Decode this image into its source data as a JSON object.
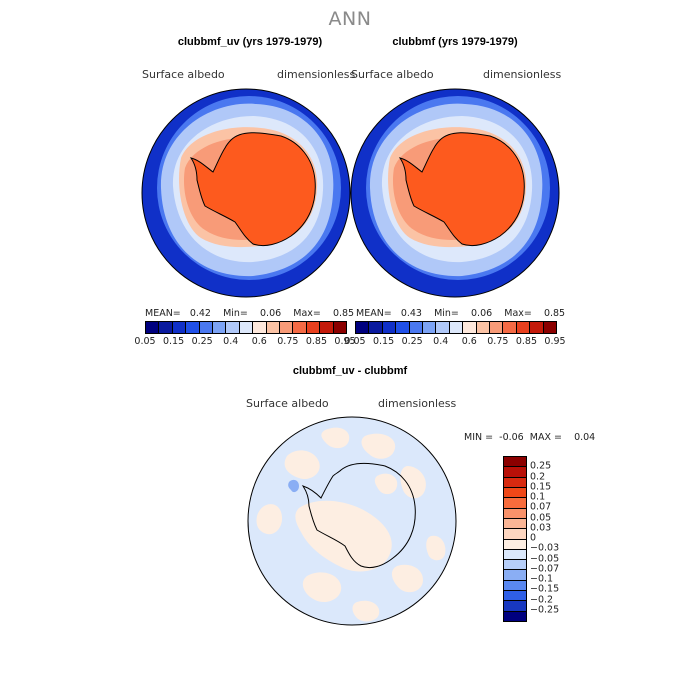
{
  "season": "ANN",
  "chart_data": [
    {
      "type": "heatmap",
      "projection": "south-polar-stereographic",
      "title": "clubbmf_uv (yrs 1979-1979)",
      "left_label": "Surface albedo",
      "right_label": "dimensionless",
      "stats": {
        "mean_label": "MEAN=",
        "mean": "0.42",
        "min_label": "Min=",
        "min": "0.06",
        "max_label": "Max=",
        "max": "0.85"
      },
      "levels": [
        "0.05",
        "0.15",
        "0.25",
        "0.4",
        "0.6",
        "0.75",
        "0.85",
        "0.95"
      ],
      "colors": [
        "#00007f",
        "#0a1a9e",
        "#1030c8",
        "#2050e8",
        "#4a78f0",
        "#7ca3f5",
        "#b0c8f8",
        "#dde8fb",
        "#fde8dc",
        "#fbc3a5",
        "#f89b78",
        "#f46a45",
        "#e8401e",
        "#c41a0a",
        "#8b0000"
      ]
    },
    {
      "type": "heatmap",
      "projection": "south-polar-stereographic",
      "title": "clubbmf (yrs 1979-1979)",
      "left_label": "Surface albedo",
      "right_label": "dimensionless",
      "stats": {
        "mean_label": "MEAN=",
        "mean": "0.43",
        "min_label": "Min=",
        "min": "0.06",
        "max_label": "Max=",
        "max": "0.85"
      },
      "levels": [
        "0.05",
        "0.15",
        "0.25",
        "0.4",
        "0.6",
        "0.75",
        "0.85",
        "0.95"
      ],
      "colors": [
        "#00007f",
        "#0a1a9e",
        "#1030c8",
        "#2050e8",
        "#4a78f0",
        "#7ca3f5",
        "#b0c8f8",
        "#dde8fb",
        "#fde8dc",
        "#fbc3a5",
        "#f89b78",
        "#f46a45",
        "#e8401e",
        "#c41a0a",
        "#8b0000"
      ]
    },
    {
      "type": "heatmap",
      "projection": "south-polar-stereographic",
      "title": "clubbmf_uv - clubbmf",
      "left_label": "Surface albedo",
      "right_label": "dimensionless",
      "stats": {
        "min_label": "MIN =",
        "min": "-0.06",
        "max_label": "MAX =",
        "max": "0.04"
      },
      "levels": [
        "0.25",
        "0.2",
        "0.15",
        "0.1",
        "0.07",
        "0.05",
        "0.03",
        "0",
        "-0.03",
        "-0.05",
        "-0.07",
        "-0.1",
        "-0.15",
        "-0.2",
        "-0.25"
      ],
      "colors": [
        "#8b0000",
        "#b81008",
        "#d82a10",
        "#f04818",
        "#f86c3c",
        "#f9926a",
        "#fbb696",
        "#fdd6c0",
        "#fdeee2",
        "#dbe8fb",
        "#b6cef8",
        "#8aaef4",
        "#5a88f0",
        "#2f5fe6",
        "#1838c0",
        "#00007f"
      ]
    }
  ]
}
